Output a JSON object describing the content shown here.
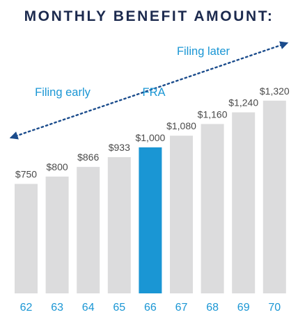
{
  "chart_data": {
    "type": "bar",
    "title": "MONTHLY BENEFIT AMOUNT:",
    "categories": [
      "62",
      "63",
      "64",
      "65",
      "66",
      "67",
      "68",
      "69",
      "70"
    ],
    "values": [
      750,
      800,
      866,
      933,
      1000,
      1080,
      1160,
      1240,
      1320
    ],
    "value_labels": [
      "$750",
      "$800",
      "$866",
      "$933",
      "$1,000",
      "$1,080",
      "$1,160",
      "$1,240",
      "$1,320"
    ],
    "highlight_category": "66",
    "annotations": {
      "early": "Filing early",
      "fra": "FRA",
      "later": "Filing later"
    },
    "xlabel": "",
    "ylabel": "",
    "ylim": [
      0,
      1350
    ],
    "grid": false,
    "colors": {
      "bar": "#dcdcdd",
      "highlight_bar": "#1a96d4",
      "accent_text": "#1a96d4",
      "value_text": "#4a4a4a",
      "title_text": "#1c2a4e",
      "arrow": "#1b4c8c"
    }
  }
}
